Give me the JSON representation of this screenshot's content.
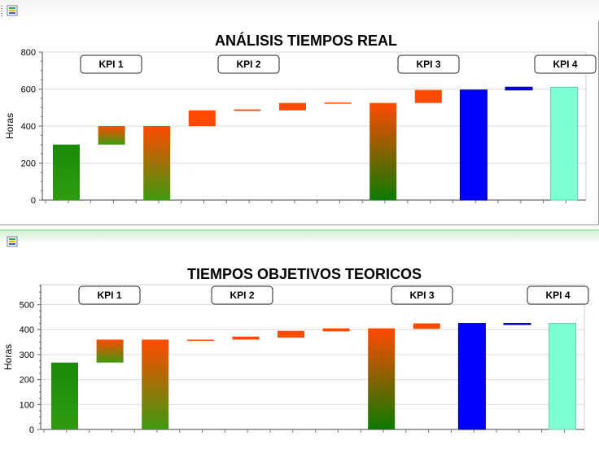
{
  "chart_data": [
    {
      "type": "bar",
      "subtype": "waterfall",
      "title": "ANÁLISIS TIEMPOS REAL",
      "xlabel": "",
      "ylabel": "Horas",
      "ylim": [
        0,
        800
      ],
      "yticks": [
        "0",
        "200",
        "400",
        "600",
        "800"
      ],
      "grid": true,
      "kpi_labels": [
        "KPI 1",
        "KPI 2",
        "KPI 3",
        "KPI 4"
      ],
      "bars": [
        {
          "start": 0,
          "end": 300,
          "style": "green-solid"
        },
        {
          "start": 300,
          "end": 400,
          "style": "orange-to-green"
        },
        {
          "start": 0,
          "end": 400,
          "style": "orange-to-green"
        },
        {
          "start": 400,
          "end": 485,
          "style": "orange"
        },
        {
          "start": 482,
          "end": 490,
          "style": "orange"
        },
        {
          "start": 485,
          "end": 525,
          "style": "orange"
        },
        {
          "start": 522,
          "end": 527,
          "style": "orange"
        },
        {
          "start": 0,
          "end": 525,
          "style": "orange-to-darkgreen"
        },
        {
          "start": 525,
          "end": 595,
          "style": "orange"
        },
        {
          "start": 0,
          "end": 595,
          "style": "blue"
        },
        {
          "start": 595,
          "end": 610,
          "style": "blue"
        },
        {
          "start": 0,
          "end": 610,
          "style": "aqua"
        }
      ]
    },
    {
      "type": "bar",
      "subtype": "waterfall",
      "title": "TIEMPOS OBJETIVOS TEORICOS",
      "xlabel": "",
      "ylabel": "Horas",
      "ylim": [
        0,
        580
      ],
      "yticks": [
        "0",
        "100",
        "200",
        "300",
        "400",
        "500"
      ],
      "grid": true,
      "kpi_labels": [
        "KPI 1",
        "KPI 2",
        "KPI 3",
        "KPI 4"
      ],
      "bars": [
        {
          "start": 0,
          "end": 268,
          "style": "green-solid"
        },
        {
          "start": 268,
          "end": 360,
          "style": "orange-to-green"
        },
        {
          "start": 0,
          "end": 360,
          "style": "orange-to-green"
        },
        {
          "start": 357,
          "end": 360,
          "style": "orange"
        },
        {
          "start": 360,
          "end": 372,
          "style": "orange"
        },
        {
          "start": 368,
          "end": 395,
          "style": "orange"
        },
        {
          "start": 393,
          "end": 405,
          "style": "orange"
        },
        {
          "start": 0,
          "end": 405,
          "style": "orange-to-darkgreen"
        },
        {
          "start": 403,
          "end": 425,
          "style": "orange"
        },
        {
          "start": 0,
          "end": 425,
          "style": "blue"
        },
        {
          "start": 423,
          "end": 425,
          "style": "blue"
        },
        {
          "start": 0,
          "end": 425,
          "style": "aqua"
        }
      ]
    }
  ],
  "colors": {
    "green": "#1f8a10",
    "orange": "#ff4a00",
    "blue": "#0000ff",
    "aqua": "#7fffd4"
  }
}
